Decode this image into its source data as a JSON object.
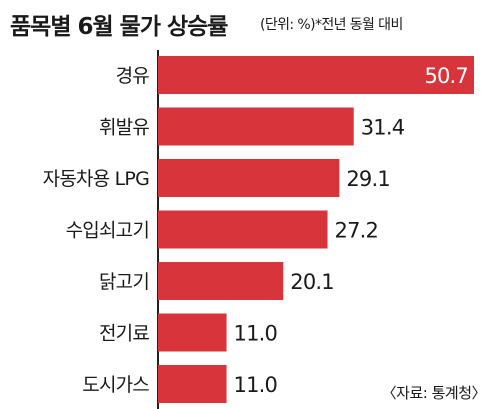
{
  "colors": {
    "bar": "#d8343c",
    "axis": "#222222",
    "text": "#1a1a1a",
    "value_inside": "#ffffff"
  },
  "chart_data": {
    "type": "bar",
    "orientation": "horizontal",
    "title": "품목별 6월 물가 상승률",
    "subtitle": "(단위: %)*전년 동월 대비",
    "source": "〈자료: 통계청〉",
    "categories": [
      "경유",
      "휘발유",
      "자동차용 LPG",
      "수입쇠고기",
      "닭고기",
      "전기료",
      "도시가스"
    ],
    "values": [
      50.7,
      31.4,
      29.1,
      27.2,
      20.1,
      11.0,
      11.0
    ],
    "value_labels": [
      "50.7",
      "31.4",
      "29.1",
      "27.2",
      "20.1",
      "11.0",
      "11.0"
    ],
    "xlim": [
      0,
      50.7
    ],
    "grid": false,
    "legend": "none"
  }
}
